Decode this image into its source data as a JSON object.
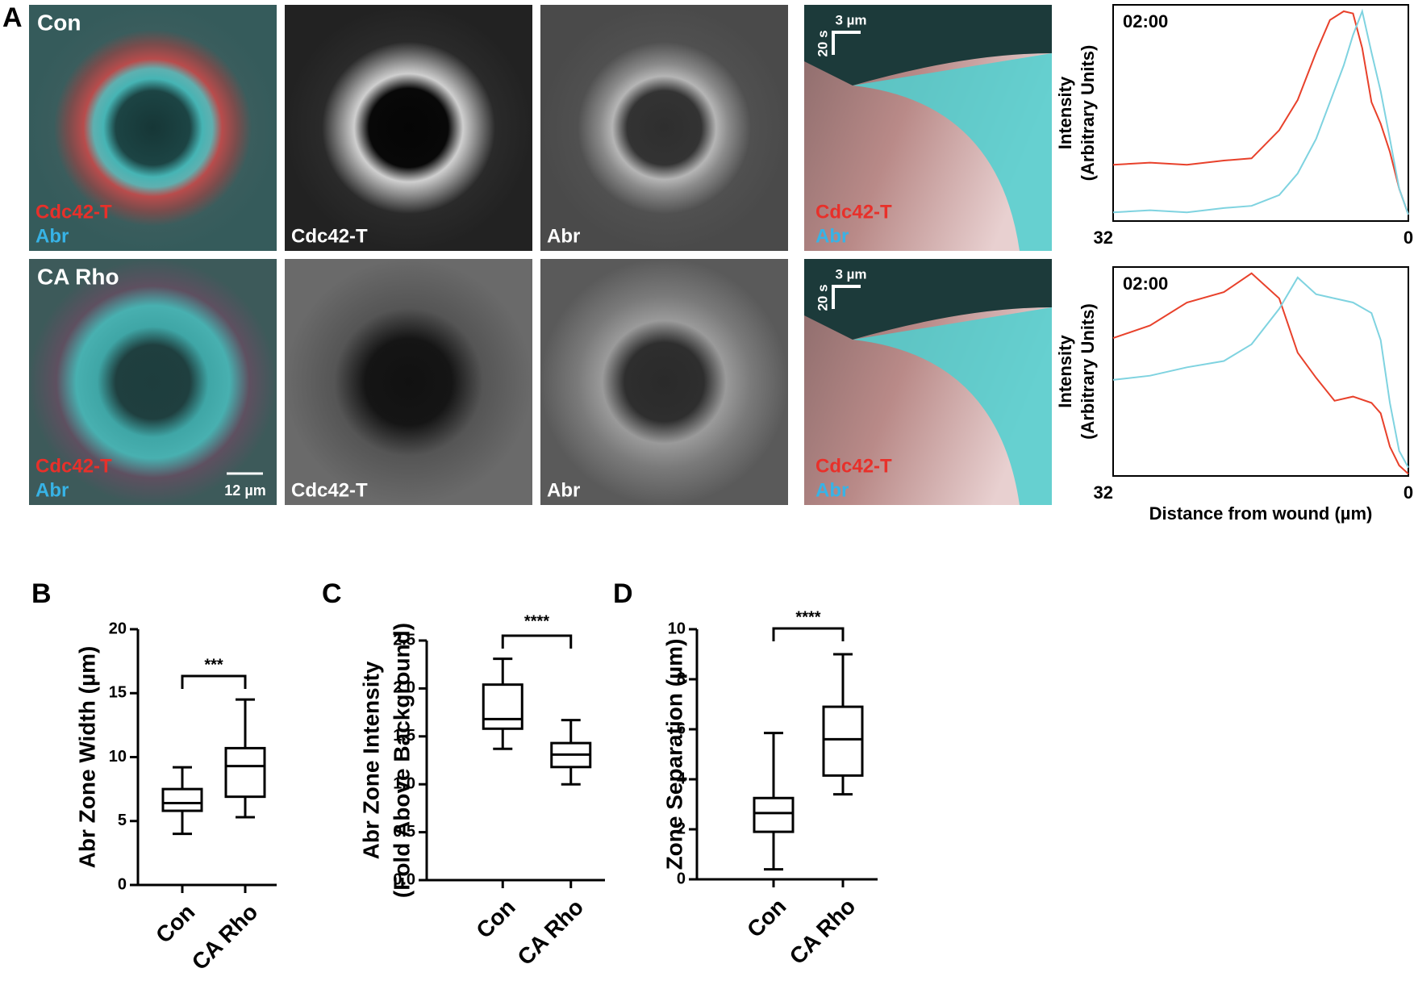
{
  "panel_letters": [
    "A",
    "B",
    "C",
    "D"
  ],
  "panel_a": {
    "rows": [
      {
        "condition": "Con",
        "merge_labels": [
          "Cdc42-T",
          "Abr"
        ],
        "channel_labels": [
          "Cdc42-T",
          "Abr"
        ],
        "kymograph_labels": [
          "Cdc42-T",
          "Abr"
        ],
        "kymograph_scale": [
          "20 s",
          "3 µm"
        ]
      },
      {
        "condition": "CA Rho",
        "merge_labels": [
          "Cdc42-T",
          "Abr"
        ],
        "channel_labels": [
          "Cdc42-T",
          "Abr"
        ],
        "kymograph_labels": [
          "Cdc42-T",
          "Abr"
        ],
        "kymograph_scale": [
          "20 s",
          "3 µm"
        ]
      }
    ],
    "scale_bar": "12 µm"
  },
  "chart_data": [
    {
      "type": "line",
      "annotation": "02:00",
      "ylabel": [
        "Intensity",
        "(Arbitrary Units)"
      ],
      "x": [
        32,
        28,
        24,
        20,
        17,
        14,
        12,
        10,
        8.5,
        7,
        6,
        5,
        4,
        3,
        2,
        1,
        0
      ],
      "xlim": [
        32,
        0
      ],
      "xticks": [
        32,
        0
      ],
      "ylim": [
        0,
        1
      ],
      "series": [
        {
          "color": "#e8412b",
          "values": [
            0.26,
            0.27,
            0.26,
            0.28,
            0.29,
            0.42,
            0.56,
            0.78,
            0.93,
            0.97,
            0.96,
            0.8,
            0.55,
            0.45,
            0.32,
            0.15,
            0.03
          ]
        },
        {
          "color": "#7fd3e0",
          "values": [
            0.04,
            0.05,
            0.04,
            0.06,
            0.07,
            0.12,
            0.22,
            0.38,
            0.55,
            0.72,
            0.86,
            0.97,
            0.78,
            0.6,
            0.38,
            0.15,
            0.03
          ]
        }
      ]
    },
    {
      "type": "line",
      "annotation": "02:00",
      "ylabel": [
        "Intensity",
        "(Arbitrary Units)"
      ],
      "xlabel": "Distance from wound (µm)",
      "x": [
        32,
        28,
        24,
        20,
        17,
        14,
        12,
        10,
        8,
        6,
        4,
        3,
        2,
        1,
        0
      ],
      "xlim": [
        32,
        0
      ],
      "xticks": [
        32,
        0
      ],
      "ylim": [
        0,
        1
      ],
      "series": [
        {
          "color": "#e8412b",
          "values": [
            0.66,
            0.72,
            0.83,
            0.88,
            0.97,
            0.85,
            0.59,
            0.47,
            0.36,
            0.38,
            0.35,
            0.3,
            0.14,
            0.05,
            0.01
          ]
        },
        {
          "color": "#7fd3e0",
          "values": [
            0.46,
            0.48,
            0.52,
            0.55,
            0.63,
            0.8,
            0.95,
            0.87,
            0.85,
            0.83,
            0.78,
            0.65,
            0.35,
            0.12,
            0.04
          ]
        }
      ]
    },
    {
      "type": "box",
      "ylabel": [
        "Abr Zone Width (µm)"
      ],
      "categories": [
        "Con",
        "CA Rho"
      ],
      "min": [
        4,
        5.3
      ],
      "q1": [
        5.8,
        6.9
      ],
      "median": [
        6.4,
        9.3
      ],
      "q3": [
        7.5,
        10.7
      ],
      "max": [
        9.2,
        14.5
      ],
      "ylim": [
        0,
        20
      ],
      "yticks": [
        0,
        5,
        10,
        15,
        20
      ],
      "annotation": "***"
    },
    {
      "type": "box",
      "ylabel": [
        "Abr Zone Intensity",
        "(Fold Above Background)"
      ],
      "categories": [
        "Con",
        "CA Rho"
      ],
      "min": [
        1.37,
        1.0
      ],
      "q1": [
        1.58,
        1.18
      ],
      "median": [
        1.68,
        1.31
      ],
      "q3": [
        2.04,
        1.43
      ],
      "max": [
        2.31,
        1.67
      ],
      "ylim": [
        0,
        2.5
      ],
      "yticks": [
        {
          "value": 0,
          "label": "0.0"
        },
        0.5,
        {
          "value": 1,
          "label": "1.0"
        },
        1.5,
        {
          "value": 2,
          "label": "2.0"
        },
        2.5
      ],
      "annotation": "****"
    },
    {
      "type": "box",
      "ylabel": [
        "Zone Separation (µm)"
      ],
      "categories": [
        "Con",
        "CA Rho"
      ],
      "min": [
        0.4,
        3.4
      ],
      "q1": [
        1.9,
        4.15
      ],
      "median": [
        2.65,
        5.6
      ],
      "q3": [
        3.25,
        6.9
      ],
      "max": [
        5.85,
        9.0
      ],
      "ylim": [
        0,
        10
      ],
      "yticks": [
        0,
        2,
        4,
        6,
        8,
        10
      ],
      "annotation": "****"
    }
  ]
}
